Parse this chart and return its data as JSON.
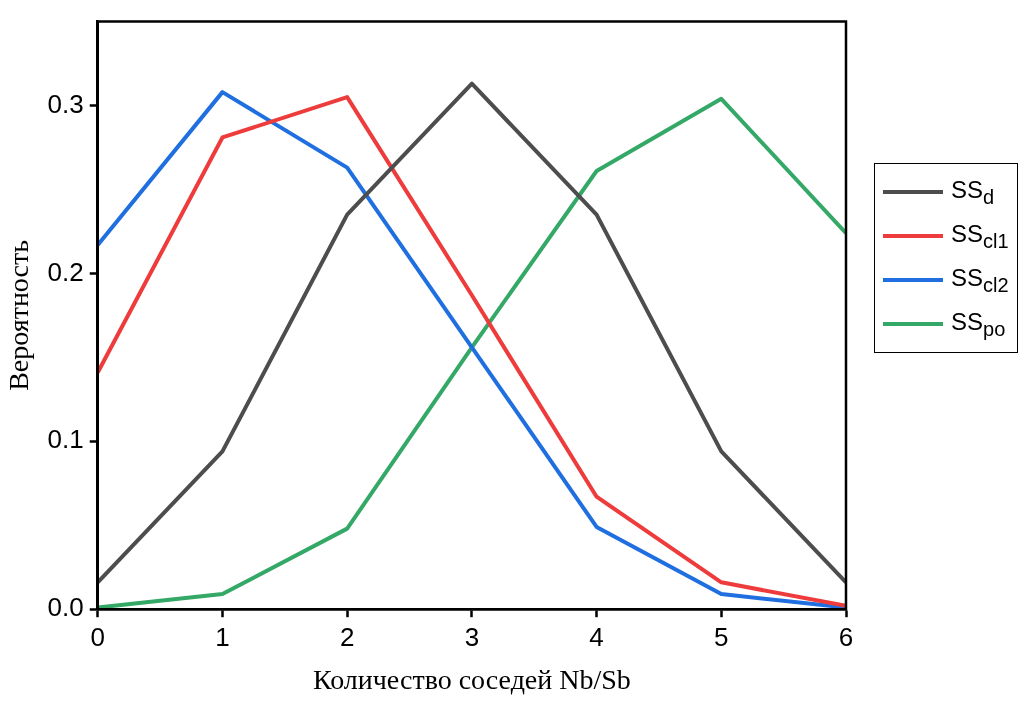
{
  "chart_data": {
    "type": "line",
    "xlabel": "Количество соседей Nb/Sb",
    "ylabel": "Вероятность",
    "x": [
      0,
      1,
      2,
      3,
      4,
      5,
      6
    ],
    "series": [
      {
        "name": "SS$_{d}$",
        "color": "#4d4d4d",
        "values": [
          0.016,
          0.094,
          0.235,
          0.313,
          0.235,
          0.094,
          0.016
        ]
      },
      {
        "name": "SS$_{cl1}$",
        "color": "#ee3b3b",
        "values": [
          0.141,
          0.281,
          0.305,
          0.187,
          0.067,
          0.016,
          0.002
        ]
      },
      {
        "name": "SS$_{cl2}$",
        "color": "#1f6fe0",
        "values": [
          0.217,
          0.308,
          0.263,
          0.156,
          0.049,
          0.009,
          0.001
        ]
      },
      {
        "name": "SS$_{po}$",
        "color": "#34a867",
        "values": [
          0.001,
          0.009,
          0.048,
          0.156,
          0.261,
          0.304,
          0.224
        ]
      }
    ],
    "xlim": [
      0,
      6
    ],
    "xticks": [
      0,
      1,
      2,
      3,
      4,
      5,
      6
    ],
    "ylim": [
      0,
      0.35
    ],
    "yticks": [
      {
        "value": 0,
        "label": "0.0"
      },
      0.1,
      0.2,
      0.3
    ],
    "grid": false,
    "legend": "right",
    "marker": "none",
    "line_style": "solid"
  }
}
